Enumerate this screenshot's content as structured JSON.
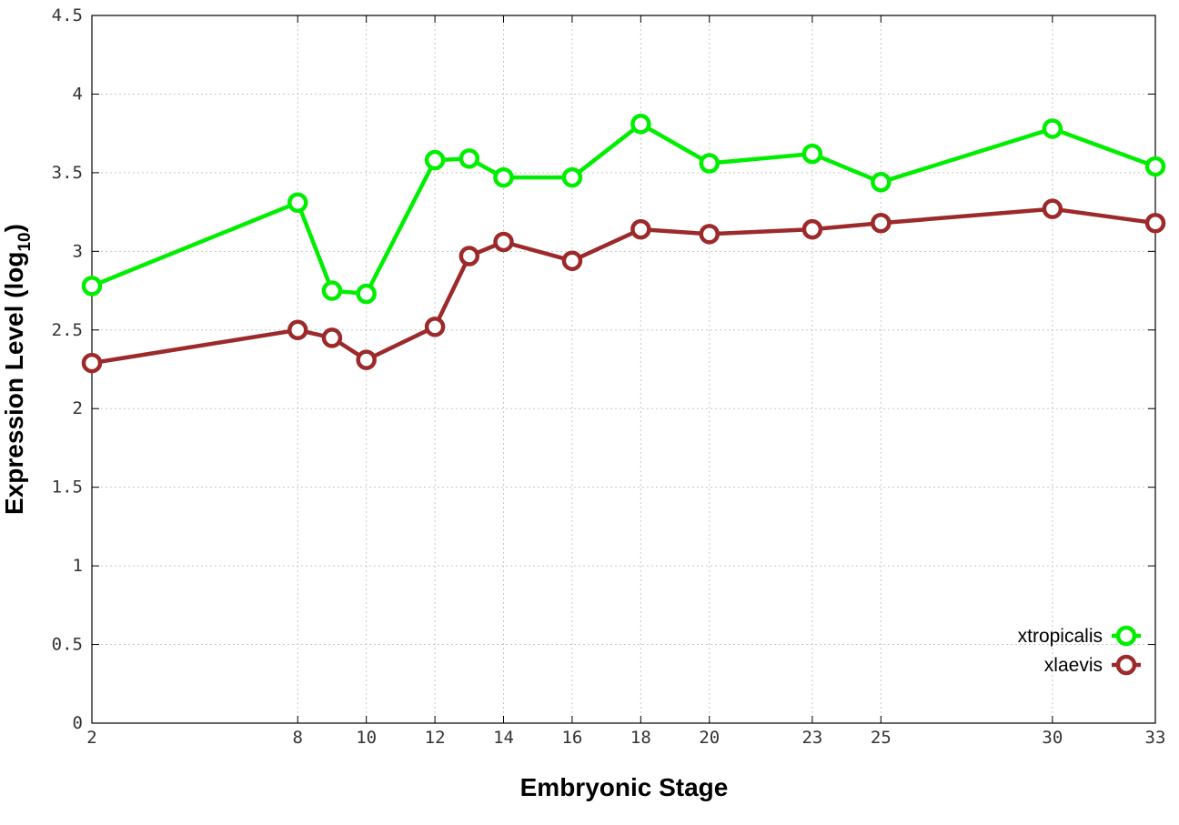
{
  "chart_data": {
    "type": "line",
    "xlabel": "Embryonic Stage",
    "ylabel": {
      "main": "Expression Level (log",
      "subscript": "10",
      "suffix": ")"
    },
    "xlim": [
      2,
      33
    ],
    "ylim": [
      0,
      4.5
    ],
    "x_ticks": [
      2,
      8,
      10,
      12,
      14,
      16,
      18,
      20,
      23,
      25,
      30,
      33
    ],
    "y_ticks": [
      0,
      0.5,
      1,
      1.5,
      2,
      2.5,
      3,
      3.5,
      4,
      4.5
    ],
    "y_tick_labels": [
      "0",
      "0.5",
      "1",
      "1.5",
      "2",
      "2.5",
      "3",
      "3.5",
      "4",
      "4.5"
    ],
    "grid": true,
    "legend_position": "bottom-right",
    "series": [
      {
        "name": "xtropicalis",
        "color": "#00ee00",
        "x": [
          2,
          8,
          9,
          10,
          12,
          13,
          14,
          16,
          18,
          20,
          23,
          25,
          30,
          33
        ],
        "values": [
          2.78,
          3.31,
          2.75,
          2.73,
          3.58,
          3.59,
          3.47,
          3.47,
          3.81,
          3.56,
          3.62,
          3.44,
          3.78,
          3.54
        ]
      },
      {
        "name": "xlaevis",
        "color": "#9c2a2a",
        "x": [
          2,
          8,
          9,
          10,
          12,
          13,
          14,
          16,
          18,
          20,
          23,
          25,
          30,
          33
        ],
        "values": [
          2.29,
          2.5,
          2.45,
          2.31,
          2.52,
          2.97,
          3.06,
          2.94,
          3.14,
          3.11,
          3.14,
          3.18,
          3.27,
          3.18
        ]
      }
    ]
  }
}
